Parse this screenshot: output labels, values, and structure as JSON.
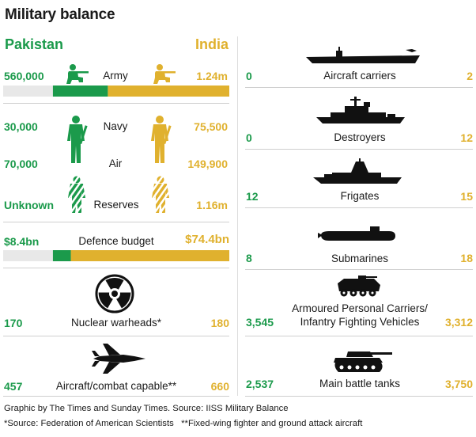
{
  "title": "Military balance",
  "colors": {
    "pakistan": "#1b9a4b",
    "india": "#e0b12e",
    "empty": "#e8e8e8"
  },
  "countries": {
    "left": "Pakistan",
    "right": "India"
  },
  "left_rows": [
    {
      "label": "Army",
      "pakistan": "560,000",
      "india": "1.24m",
      "icon": "soldier-kneeling-icon"
    },
    {
      "label": "Navy",
      "pakistan": "30,000",
      "india": "75,500",
      "icon": "soldier-standing-icon"
    },
    {
      "label": "Air",
      "pakistan": "70,000",
      "india": "149,900",
      "icon": "soldier-standing-icon"
    },
    {
      "label": "Reserves",
      "pakistan": "Unknown",
      "india": "1.16m",
      "icon": "soldier-camouflage-icon"
    },
    {
      "label": "Defence budget",
      "pakistan": "$8.4bn",
      "india": "$74.4bn"
    },
    {
      "label": "Nuclear warheads*",
      "pakistan": "170",
      "india": "180",
      "icon": "radiation-icon"
    },
    {
      "label": "Aircraft/combat capable**",
      "pakistan": "457",
      "india": "660",
      "icon": "fighter-jet-icon"
    }
  ],
  "right_rows": [
    {
      "label": "Aircraft carriers",
      "pakistan": "0",
      "india": "2",
      "icon": "aircraft-carrier-icon"
    },
    {
      "label": "Destroyers",
      "pakistan": "0",
      "india": "12",
      "icon": "destroyer-icon"
    },
    {
      "label": "Frigates",
      "pakistan": "12",
      "india": "15",
      "icon": "frigate-icon"
    },
    {
      "label": "Submarines",
      "pakistan": "8",
      "india": "18",
      "icon": "submarine-icon"
    },
    {
      "label_line1": "Armoured Personal Carriers/",
      "label_line2": "Infantry Fighting Vehicles",
      "pakistan": "3,545",
      "india": "3,312",
      "icon": "apc-icon"
    },
    {
      "label": "Main battle tanks",
      "pakistan": "2,537",
      "india": "3,750",
      "icon": "tank-icon"
    }
  ],
  "chart_data": [
    {
      "type": "bar",
      "title": "Army",
      "series": [
        {
          "name": "Pakistan",
          "values": [
            560000
          ]
        },
        {
          "name": "India",
          "values": [
            1240000
          ]
        }
      ],
      "stacked_share": {
        "pakistan": 0.311,
        "india": 0.689
      }
    },
    {
      "type": "bar",
      "title": "Defence budget",
      "series": [
        {
          "name": "Pakistan",
          "values": [
            8.4
          ]
        },
        {
          "name": "India",
          "values": [
            74.4
          ]
        }
      ],
      "stacked_share": {
        "pakistan": 0.101,
        "india": 0.899
      }
    }
  ],
  "footer": {
    "line1": "Graphic by The Times and Sunday Times. Source: IISS Military Balance",
    "line2": "*Source: Federation of American Scientists   **Fixed-wing fighter and ground attack aircraft"
  }
}
